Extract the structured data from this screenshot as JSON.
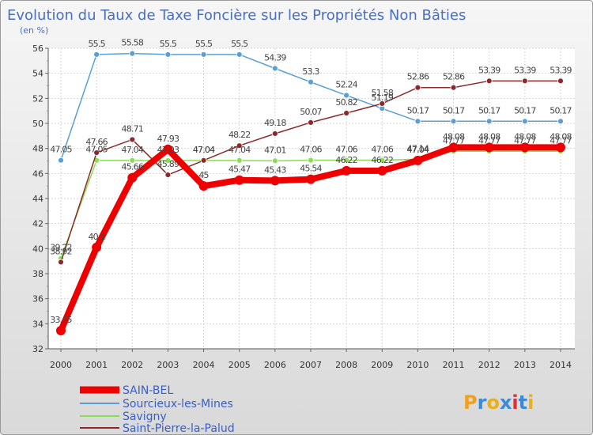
{
  "chart_data": {
    "type": "line",
    "title": "Evolution du Taux de Taxe Foncière sur les Propriétés Non Bâties",
    "subtitle": "(en %)",
    "xlabel": "",
    "ylabel": "(en %)",
    "categories": [
      "2000",
      "2001",
      "2002",
      "2003",
      "2004",
      "2005",
      "2006",
      "2007",
      "2008",
      "2009",
      "2010",
      "2011",
      "2012",
      "2013",
      "2014"
    ],
    "ylim": [
      32,
      56
    ],
    "yticks": [
      32,
      34,
      36,
      38,
      40,
      42,
      44,
      46,
      48,
      50,
      52,
      54,
      56
    ],
    "grid": true,
    "legend_position": "bottom-left",
    "series": [
      {
        "name": "SAIN-BEL",
        "color": "#ee0000",
        "labels": [
          "33.45",
          "40.1",
          "45.66",
          "47.93",
          "45",
          "45.47",
          "45.43",
          "45.54",
          "46.22",
          "46.22",
          "47.04",
          "48.08",
          "48.08",
          "48.08",
          "48.08"
        ],
        "values": [
          33.45,
          40.1,
          45.66,
          47.93,
          45,
          45.47,
          45.43,
          45.54,
          46.22,
          46.22,
          47.04,
          48.08,
          48.08,
          48.08,
          48.08
        ]
      },
      {
        "name": "Sourcieux-les-Mines",
        "color": "#5a9fd4",
        "labels": [
          "47.05",
          "55.5",
          "55.58",
          "55.5",
          "55.5",
          "55.5",
          "54.39",
          "53.3",
          "52.24",
          "51.19",
          "50.17",
          "50.17",
          "50.17",
          "50.17",
          "50.17"
        ],
        "values": [
          47.05,
          55.5,
          55.58,
          55.5,
          55.5,
          55.5,
          54.39,
          53.3,
          52.24,
          51.19,
          50.17,
          50.17,
          50.17,
          50.17,
          50.17
        ]
      },
      {
        "name": "Savigny",
        "color": "#88dd55",
        "labels": [
          "39.22",
          "47.05",
          "47.04",
          "47.03",
          "47.04",
          "47.04",
          "47.01",
          "47.06",
          "47.06",
          "47.06",
          "47.14",
          "47.77",
          "47.77",
          "47.77",
          "47.77"
        ],
        "values": [
          39.22,
          47.05,
          47.04,
          47.03,
          47.04,
          47.04,
          47.01,
          47.06,
          47.06,
          47.06,
          47.14,
          47.77,
          47.77,
          47.77,
          47.77
        ]
      },
      {
        "name": "Saint-Pierre-la-Palud",
        "color": "#8b2a2a",
        "labels": [
          "38.92",
          "47.66",
          "48.71",
          "45.89",
          "47.04",
          "48.22",
          "49.18",
          "50.07",
          "50.82",
          "51.58",
          "52.86",
          "52.86",
          "53.39",
          "53.39",
          "53.39"
        ],
        "values": [
          38.92,
          47.66,
          48.71,
          45.89,
          47.04,
          48.22,
          49.18,
          50.07,
          50.82,
          51.58,
          52.86,
          52.86,
          53.39,
          53.39,
          53.39
        ]
      }
    ]
  },
  "brand": {
    "letters": [
      "P",
      "r",
      "o",
      "x",
      "i",
      "t",
      "i"
    ],
    "colors": [
      "#f0a020",
      "#3a8ad8",
      "#e8b020",
      "#3a8ad8",
      "#e03030",
      "#3a8ad8",
      "#e8b020"
    ]
  }
}
